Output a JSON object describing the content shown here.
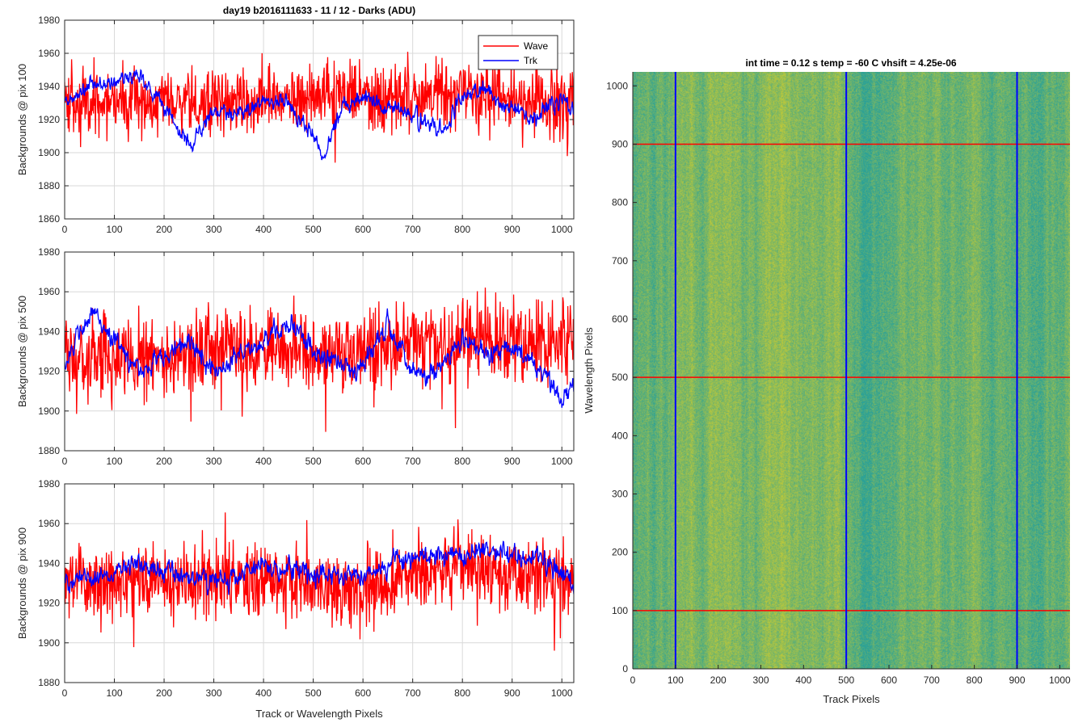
{
  "figure_title": "day19 b2016111633 - 11 / 12 - Darks (ADU)",
  "colors": {
    "wave": "#ff0000",
    "trk": "#0000ff",
    "grid": "#d9d9d9"
  },
  "chart_data": [
    {
      "type": "line",
      "xlabel": "",
      "ylabel": "Backgrounds @ pix 100",
      "xlim": [
        0,
        1024
      ],
      "ylim": [
        1860,
        1980
      ],
      "xticks": [
        0,
        100,
        200,
        300,
        400,
        500,
        600,
        700,
        800,
        900,
        1000
      ],
      "yticks": [
        1860,
        1880,
        1900,
        1920,
        1940,
        1960,
        1980
      ],
      "grid": true,
      "legend": {
        "position": "top-right",
        "entries": [
          "Wave",
          "Trk"
        ]
      },
      "series": [
        {
          "name": "Wave",
          "color": "#ff0000",
          "mean": 1932,
          "noise": 10,
          "anchors": [
            [
              0,
              1930
            ],
            [
              200,
              1930
            ],
            [
              400,
              1932
            ],
            [
              600,
              1934
            ],
            [
              800,
              1934
            ],
            [
              1024,
              1932
            ]
          ]
        },
        {
          "name": "Trk",
          "color": "#0000ff",
          "mean": 1930,
          "noise": 5,
          "anchors": [
            [
              0,
              1928
            ],
            [
              50,
              1940
            ],
            [
              100,
              1942
            ],
            [
              150,
              1948
            ],
            [
              200,
              1928
            ],
            [
              250,
              1904
            ],
            [
              300,
              1925
            ],
            [
              350,
              1922
            ],
            [
              400,
              1932
            ],
            [
              450,
              1930
            ],
            [
              500,
              1910
            ],
            [
              520,
              1897
            ],
            [
              560,
              1930
            ],
            [
              600,
              1934
            ],
            [
              640,
              1930
            ],
            [
              700,
              1922
            ],
            [
              760,
              1912
            ],
            [
              800,
              1935
            ],
            [
              850,
              1938
            ],
            [
              900,
              1925
            ],
            [
              950,
              1922
            ],
            [
              1000,
              1935
            ],
            [
              1024,
              1925
            ]
          ]
        }
      ]
    },
    {
      "type": "line",
      "xlabel": "",
      "ylabel": "Backgrounds @ pix 500",
      "xlim": [
        0,
        1024
      ],
      "ylim": [
        1880,
        1980
      ],
      "xticks": [
        0,
        100,
        200,
        300,
        400,
        500,
        600,
        700,
        800,
        900,
        1000
      ],
      "yticks": [
        1880,
        1900,
        1920,
        1940,
        1960,
        1980
      ],
      "grid": true,
      "series": [
        {
          "name": "Wave",
          "color": "#ff0000",
          "mean": 1928,
          "noise": 10,
          "anchors": [
            [
              0,
              1925
            ],
            [
              200,
              1928
            ],
            [
              400,
              1930
            ],
            [
              600,
              1930
            ],
            [
              800,
              1935
            ],
            [
              1024,
              1935
            ]
          ]
        },
        {
          "name": "Trk",
          "color": "#0000ff",
          "mean": 1930,
          "noise": 5,
          "anchors": [
            [
              0,
              1925
            ],
            [
              60,
              1950
            ],
            [
              100,
              1935
            ],
            [
              150,
              1920
            ],
            [
              250,
              1935
            ],
            [
              300,
              1920
            ],
            [
              350,
              1928
            ],
            [
              400,
              1935
            ],
            [
              450,
              1945
            ],
            [
              500,
              1930
            ],
            [
              550,
              1925
            ],
            [
              600,
              1922
            ],
            [
              650,
              1945
            ],
            [
              700,
              1920
            ],
            [
              750,
              1918
            ],
            [
              800,
              1935
            ],
            [
              850,
              1928
            ],
            [
              900,
              1932
            ],
            [
              950,
              1922
            ],
            [
              1000,
              1905
            ],
            [
              1024,
              1912
            ]
          ]
        }
      ]
    },
    {
      "type": "line",
      "xlabel": "Track or Wavelength Pixels",
      "ylabel": "Backgrounds @ pix 900",
      "xlim": [
        0,
        1024
      ],
      "ylim": [
        1880,
        1980
      ],
      "xticks": [
        0,
        100,
        200,
        300,
        400,
        500,
        600,
        700,
        800,
        900,
        1000
      ],
      "yticks": [
        1880,
        1900,
        1920,
        1940,
        1960,
        1980
      ],
      "grid": true,
      "series": [
        {
          "name": "Wave",
          "color": "#ff0000",
          "mean": 1930,
          "noise": 9,
          "anchors": [
            [
              0,
              1930
            ],
            [
              200,
              1930
            ],
            [
              400,
              1932
            ],
            [
              500,
              1928
            ],
            [
              600,
              1926
            ],
            [
              700,
              1935
            ],
            [
              800,
              1938
            ],
            [
              900,
              1935
            ],
            [
              1024,
              1932
            ]
          ]
        },
        {
          "name": "Trk",
          "color": "#0000ff",
          "mean": 1934,
          "noise": 5,
          "anchors": [
            [
              0,
              1930
            ],
            [
              100,
              1935
            ],
            [
              150,
              1942
            ],
            [
              200,
              1936
            ],
            [
              300,
              1930
            ],
            [
              400,
              1938
            ],
            [
              500,
              1935
            ],
            [
              600,
              1935
            ],
            [
              700,
              1942
            ],
            [
              800,
              1944
            ],
            [
              850,
              1948
            ],
            [
              900,
              1943
            ],
            [
              950,
              1945
            ],
            [
              1024,
              1930
            ]
          ]
        }
      ]
    },
    {
      "type": "heatmap",
      "title": "int time = 0.12 s    temp = -60 C    vhsift = 4.25e-06",
      "xlabel": "Track Pixels",
      "ylabel": "Wavelength Pixels",
      "xlim": [
        0,
        1024
      ],
      "ylim": [
        0,
        1024
      ],
      "xticks": [
        0,
        100,
        200,
        300,
        400,
        500,
        600,
        700,
        800,
        900,
        1000
      ],
      "yticks": [
        0,
        100,
        200,
        300,
        400,
        500,
        600,
        700,
        800,
        900,
        1000
      ],
      "colormap": [
        "#2aa198",
        "#bdc83a"
      ],
      "vertical_lines": {
        "color": "#0000ff",
        "x": [
          100,
          500,
          900
        ]
      },
      "horizontal_lines": {
        "color": "#ff0000",
        "y": [
          100,
          500,
          900
        ]
      }
    }
  ]
}
